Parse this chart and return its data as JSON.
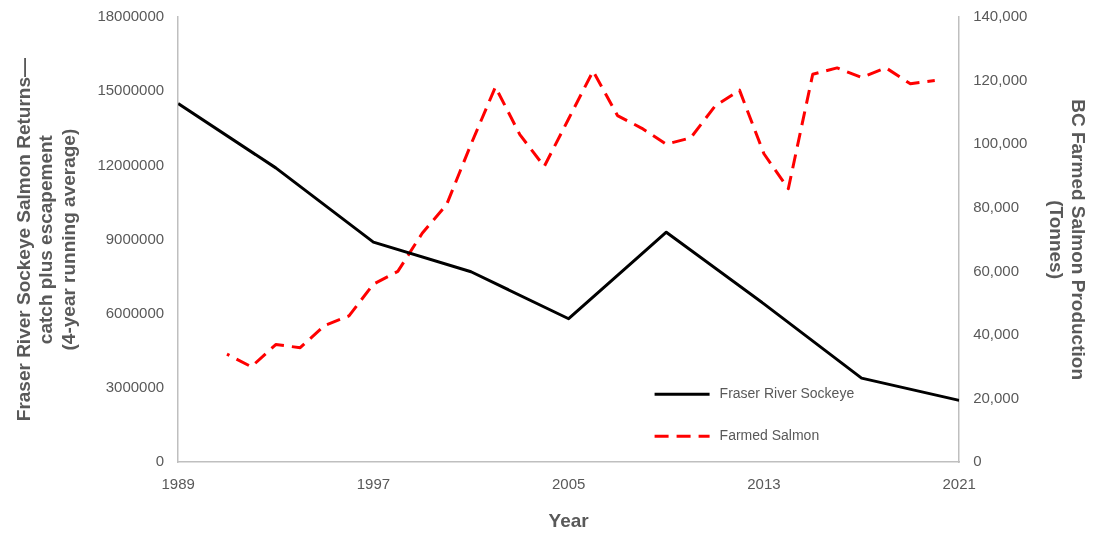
{
  "chart_data": {
    "type": "line",
    "xlabel": "Year",
    "ylabel": "Fraser River Sockeye Salmon Returns—\ncatch plus escapement\n(4-year running average)",
    "y2label": "BC Farmed Salmon Production\n(Tonnes)",
    "xlim": [
      1989,
      2021
    ],
    "xticks": [
      1989,
      1997,
      2005,
      2013,
      2021
    ],
    "ylim": [
      0,
      18000000
    ],
    "yticks": [
      0,
      3000000,
      6000000,
      9000000,
      12000000,
      15000000,
      18000000
    ],
    "y2lim": [
      0,
      140000
    ],
    "y2ticks": [
      {
        "value": 0,
        "label": "0"
      },
      {
        "value": 20000,
        "label": "20,000"
      },
      {
        "value": 40000,
        "label": "40,000"
      },
      {
        "value": 60000,
        "label": "60,000"
      },
      {
        "value": 80000,
        "label": "80,000"
      },
      {
        "value": 100000,
        "label": "100,000"
      },
      {
        "value": 120000,
        "label": "120,000"
      },
      {
        "value": 140000,
        "label": "140,000"
      }
    ],
    "grid": false,
    "legend": "bottom right",
    "marker": "none",
    "series": [
      {
        "name": "Fraser River Sockeye",
        "color": "#000000",
        "line_style": "solid",
        "x": [
          1989,
          1993,
          1997,
          2001,
          2005,
          2009,
          2013,
          2017,
          2021
        ],
        "values": [
          14500000,
          11900000,
          8900000,
          7700000,
          5800000,
          9300000,
          6400000,
          3400000,
          2500000
        ]
      },
      {
        "name": "Farmed Salmon",
        "color": "#ff0000",
        "line_style": "dashed",
        "axis": "y2",
        "x": [
          1991,
          1992,
          1993,
          1994,
          1995,
          1996,
          1997,
          1998,
          1999,
          2000,
          2001,
          2002,
          2003,
          2004,
          2005,
          2006,
          2007,
          2008,
          2009,
          2010,
          2011,
          2012,
          2013,
          2014,
          2015,
          2016,
          2017,
          2018,
          2019,
          2020
        ],
        "values": [
          34000,
          30000,
          37000,
          36000,
          43000,
          46000,
          56000,
          60000,
          72000,
          81000,
          100000,
          118000,
          103000,
          93000,
          108000,
          123000,
          109000,
          105000,
          100000,
          102000,
          112000,
          117000,
          97000,
          86000,
          122000,
          124000,
          121000,
          124000,
          119000,
          120000
        ]
      }
    ]
  }
}
